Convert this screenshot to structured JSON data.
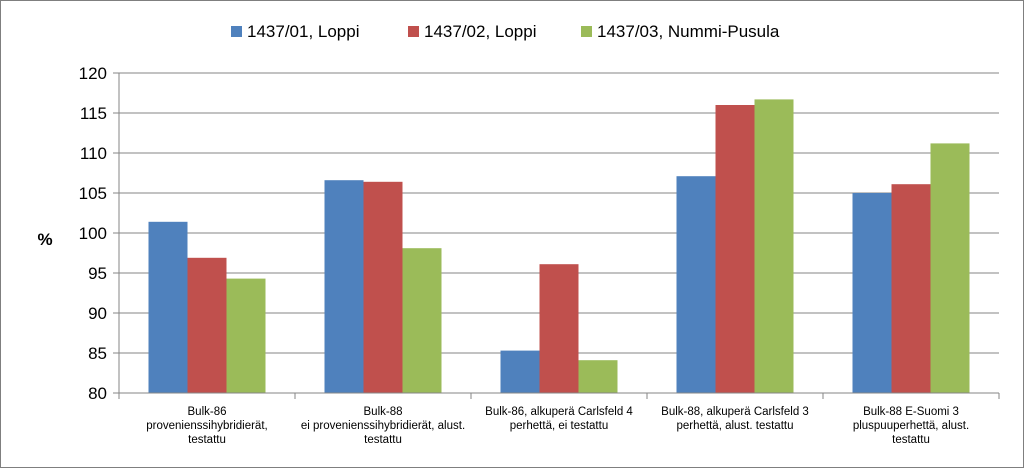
{
  "chart_data": {
    "type": "bar",
    "title": "",
    "xlabel": "",
    "ylabel": "%",
    "ylim": [
      80,
      120
    ],
    "yticks": [
      80,
      85,
      90,
      95,
      100,
      105,
      110,
      115,
      120
    ],
    "grid": true,
    "legend_position": "top",
    "categories": [
      [
        "Bulk-86",
        "provenienssihybridierät,",
        "testattu"
      ],
      [
        "Bulk-88",
        "ei  provenienssihybridierät, alust.",
        "testattu"
      ],
      [
        "Bulk-86, alkuperä Carlsfeld 4",
        "perhettä, ei testattu"
      ],
      [
        "Bulk-88, alkuperä Carlsfeld 3",
        "perhettä, alust. testattu"
      ],
      [
        "Bulk-88 E-Suomi 3",
        "pluspuuperhettä, alust.",
        "testattu"
      ]
    ],
    "series": [
      {
        "name": "1437/01, Loppi",
        "color": "#4f81bd",
        "values": [
          101.4,
          106.6,
          85.3,
          107.1,
          105.0
        ]
      },
      {
        "name": "1437/02, Loppi",
        "color": "#c0504d",
        "values": [
          96.9,
          106.4,
          96.1,
          116.0,
          106.1
        ]
      },
      {
        "name": "1437/03, Nummi-Pusula",
        "color": "#9bbb59",
        "values": [
          94.3,
          98.1,
          84.1,
          116.7,
          111.2
        ]
      }
    ]
  }
}
